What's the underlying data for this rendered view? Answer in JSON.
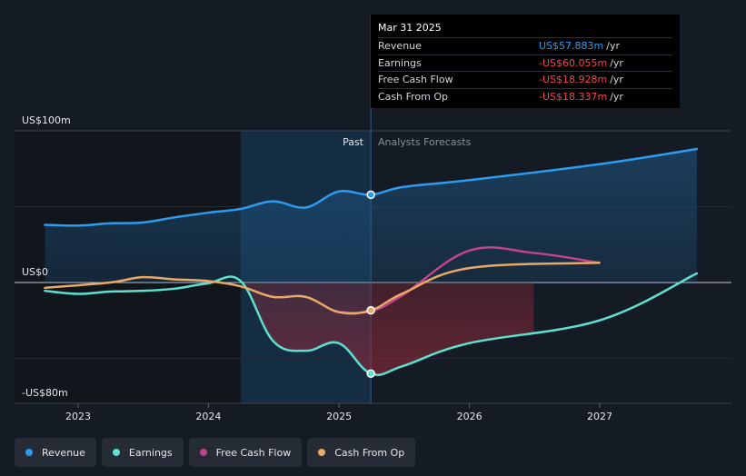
{
  "chart_data": {
    "type": "line",
    "y_axis": {
      "top_label": "US$100m",
      "zero_label": "US$0",
      "bottom_label": "-US$80m",
      "ylim": [
        -80,
        100
      ]
    },
    "x_ticks": [
      "2023",
      "2024",
      "2025",
      "2026",
      "2027"
    ],
    "divider_labels": {
      "past": "Past",
      "forecast": "Analysts Forecasts"
    },
    "series": [
      {
        "name": "Revenue",
        "color": "#2d9cf0",
        "points": [
          [
            "2022-09-30",
            38
          ],
          [
            "2022-12-31",
            37.5
          ],
          [
            "2023-03-31",
            39
          ],
          [
            "2023-06-30",
            39.5
          ],
          [
            "2023-09-30",
            43
          ],
          [
            "2023-12-31",
            46
          ],
          [
            "2024-03-31",
            48.5
          ],
          [
            "2024-06-30",
            53.5
          ],
          [
            "2024-09-30",
            49.5
          ],
          [
            "2024-12-31",
            60
          ],
          [
            "2025-03-31",
            57.883
          ],
          [
            "2025-06-30",
            63
          ],
          [
            "2025-12-31",
            67.5
          ],
          [
            "2026-12-31",
            78
          ],
          [
            "2027-09-30",
            88
          ]
        ]
      },
      {
        "name": "Earnings",
        "color": "#5ee0cf",
        "points": [
          [
            "2022-09-30",
            -5.5
          ],
          [
            "2022-12-31",
            -7.5
          ],
          [
            "2023-03-31",
            -6
          ],
          [
            "2023-06-30",
            -5.5
          ],
          [
            "2023-09-30",
            -4
          ],
          [
            "2023-12-31",
            -0.5
          ],
          [
            "2024-03-31",
            1
          ],
          [
            "2024-06-30",
            -38.5
          ],
          [
            "2024-09-30",
            -45
          ],
          [
            "2024-12-31",
            -40
          ],
          [
            "2025-03-31",
            -60.055
          ],
          [
            "2025-06-30",
            -55
          ],
          [
            "2025-12-31",
            -40
          ],
          [
            "2026-12-31",
            -25
          ],
          [
            "2027-09-30",
            6
          ]
        ]
      },
      {
        "name": "Free Cash Flow",
        "color": "#c2448c",
        "points": [
          [
            "2024-12-31",
            -19.5
          ],
          [
            "2025-03-31",
            -18.928
          ],
          [
            "2025-06-30",
            -8
          ],
          [
            "2025-12-31",
            21
          ],
          [
            "2026-06-30",
            19.5
          ],
          [
            "2026-12-31",
            13
          ]
        ]
      },
      {
        "name": "Cash From Op",
        "color": "#e8a866",
        "points": [
          [
            "2022-09-30",
            -3.5
          ],
          [
            "2023-03-31",
            0
          ],
          [
            "2023-06-30",
            3.5
          ],
          [
            "2023-09-30",
            2
          ],
          [
            "2023-12-31",
            1
          ],
          [
            "2024-03-31",
            -2.5
          ],
          [
            "2024-06-30",
            -9.5
          ],
          [
            "2024-09-30",
            -9.5
          ],
          [
            "2024-12-31",
            -19.5
          ],
          [
            "2025-03-31",
            -18.337
          ],
          [
            "2025-06-30",
            -7
          ],
          [
            "2025-12-31",
            9.5
          ],
          [
            "2026-12-31",
            13
          ]
        ]
      }
    ]
  },
  "tooltip": {
    "date": "Mar 31 2025",
    "rows": [
      {
        "name": "Revenue",
        "value": "US$57.883m",
        "unit": "/yr"
      },
      {
        "name": "Earnings",
        "value": "-US$60.055m",
        "unit": "/yr"
      },
      {
        "name": "Free Cash Flow",
        "value": "-US$18.928m",
        "unit": "/yr"
      },
      {
        "name": "Cash From Op",
        "value": "-US$18.337m",
        "unit": "/yr"
      }
    ]
  },
  "legend": [
    {
      "label": "Revenue",
      "color": "#2d9cf0"
    },
    {
      "label": "Earnings",
      "color": "#5ee0cf"
    },
    {
      "label": "Free Cash Flow",
      "color": "#c2448c"
    },
    {
      "label": "Cash From Op",
      "color": "#e8a866"
    }
  ]
}
